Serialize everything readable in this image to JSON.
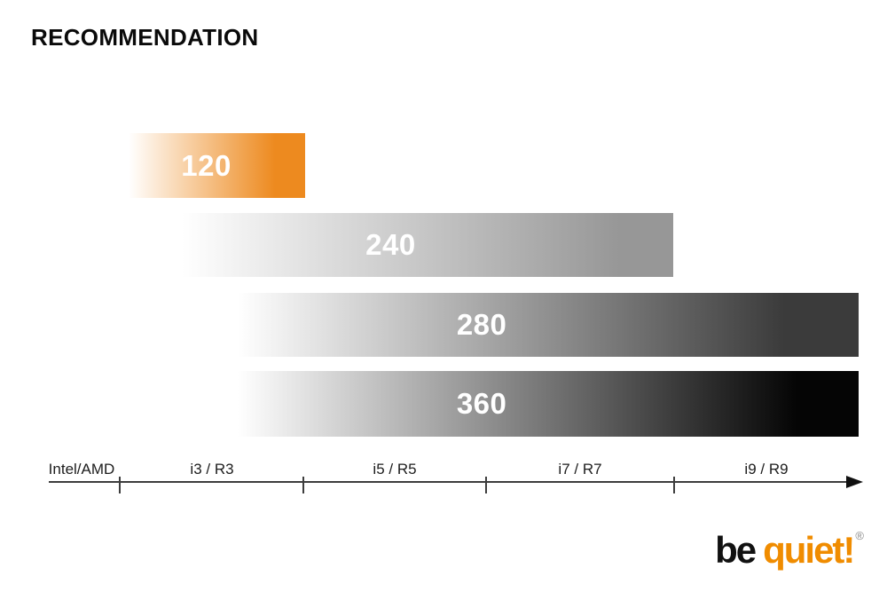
{
  "title": "RECOMMENDATION",
  "chart_data": {
    "type": "bar",
    "orientation": "horizontal",
    "title": "RECOMMENDATION",
    "axis": {
      "origin_label": "Intel/AMD",
      "tick_labels": [
        "i3 / R3",
        "i5 / R5",
        "i7 / R7",
        "i9 / R9"
      ],
      "arrow_direction": "right"
    },
    "gradient_start_color": "#FFFFFF",
    "value_label_color": "#FFFFFF",
    "bars": [
      {
        "label": "120",
        "color": "#ED8A1F",
        "solid_at": "83%",
        "recommended_up_to": "i3 / R3"
      },
      {
        "label": "240",
        "color": "#979797",
        "solid_at": "89%",
        "recommended_up_to": "i7 / R7"
      },
      {
        "label": "280",
        "color": "#3B3B3B",
        "solid_at": "88%",
        "recommended_up_to": "i9 / R9"
      },
      {
        "label": "360",
        "color": "#050505",
        "solid_at": "90%",
        "recommended_up_to": "i9 / R9"
      }
    ]
  },
  "logo": {
    "be": "be",
    "quiet": "quiet!",
    "registered": "®",
    "be_color": "#111111",
    "quiet_color": "#F08C00"
  }
}
